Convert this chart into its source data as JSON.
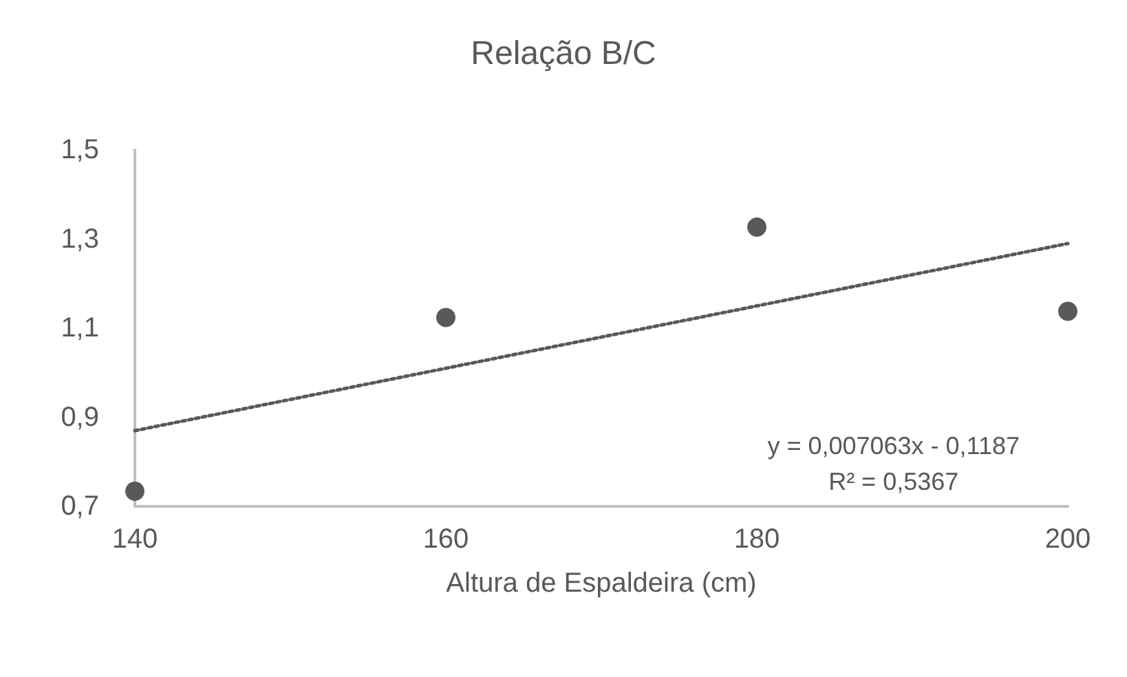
{
  "chart_data": {
    "type": "scatter",
    "title": "Relação B/C",
    "xlabel": "Altura de Espaldeira (cm)",
    "x": [
      140,
      160,
      180,
      200
    ],
    "series": [
      {
        "color": "#595959",
        "marker": "circle",
        "values": [
          0.734,
          1.124,
          1.327,
          1.138
        ]
      },
      {
        "type": "line",
        "color": "#595959",
        "marker": "none",
        "line_style": "dotted",
        "x": [
          140,
          200
        ],
        "values": [
          0.87,
          1.29
        ]
      }
    ],
    "xlim": [
      140,
      200
    ],
    "xticks": [
      140,
      160,
      180,
      200
    ],
    "ylim": [
      0.7,
      1.5
    ],
    "yticks": [
      {
        "value": 0.7,
        "label": "0,7"
      },
      {
        "value": 0.9,
        "label": "0,9"
      },
      {
        "value": 1.1,
        "label": "1,1"
      },
      {
        "value": 1.3,
        "label": "1,3"
      },
      {
        "value": 1.5,
        "label": "1,5"
      }
    ],
    "grid": false,
    "annotations": [
      "y = 0,007063x - 0,1187",
      "R² = 0,5367"
    ]
  }
}
